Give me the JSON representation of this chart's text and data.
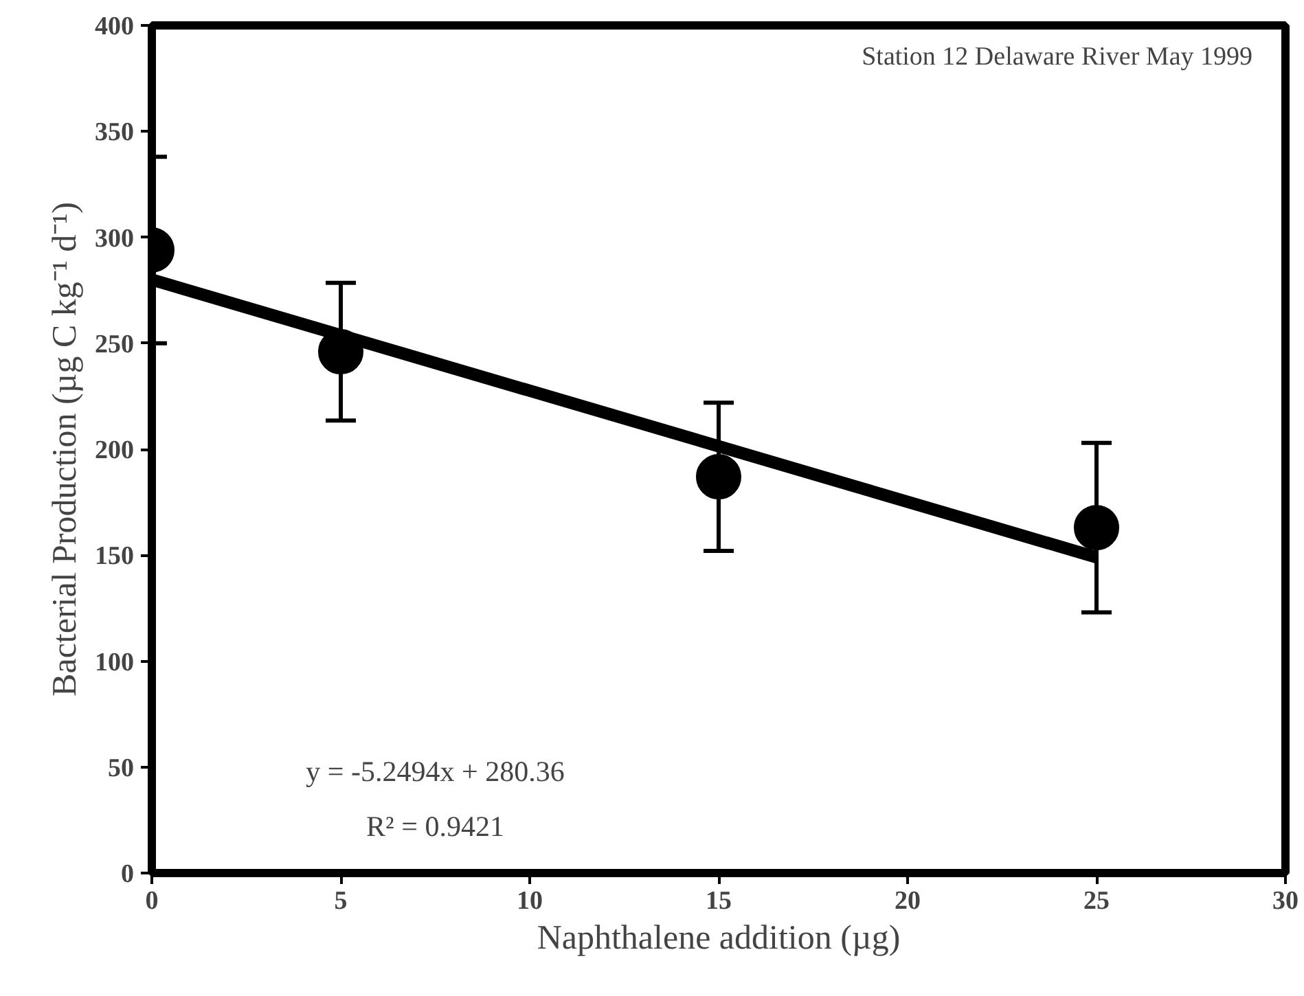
{
  "chart_data": {
    "type": "scatter",
    "xlabel": "Naphthalene addition (µg)",
    "ylabel": "Bacterial Production (µg C kg⁻¹ d⁻¹)",
    "x": [
      0,
      5,
      15,
      25
    ],
    "marker": "circle",
    "grid": false,
    "series": [
      {
        "color": "#000000",
        "values": [
          294,
          246,
          187,
          163
        ],
        "errors": [
          44,
          32.5,
          35,
          40
        ]
      },
      {
        "type": "line",
        "marker": "none",
        "color": "#000000",
        "x": [
          0,
          25
        ],
        "values": [
          280,
          149
        ]
      }
    ],
    "xlim": [
      0,
      30
    ],
    "ylim": [
      0,
      400
    ],
    "xticks": [
      0,
      5,
      10,
      15,
      20,
      25,
      30
    ],
    "yticks": [
      0,
      50,
      100,
      150,
      200,
      250,
      300,
      350,
      400
    ],
    "annotations": [
      "Station 12  Delaware River May 1999",
      "y = -5.2494x + 280.36",
      "R² = 0.9421"
    ]
  }
}
